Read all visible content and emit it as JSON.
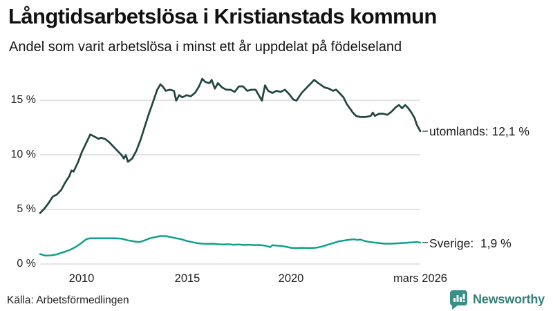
{
  "header": {
    "title": "Långtidsarbetslösa i Kristianstads kommun",
    "subtitle": "Andel som varit arbetslösa i minst ett år uppdelat på födelseland"
  },
  "footer": {
    "source": "Källa: Arbetsförmedlingen",
    "logo_text": "Newsworthy",
    "logo_icon": "bar-chart-speech-bubble-icon"
  },
  "colors": {
    "background": "#ffffff",
    "utomlands_line": "#1f463f",
    "sverige_line": "#0fa08d",
    "gridline": "#e4e4e4",
    "text": "#111111",
    "label_connector": "#4a4a4a",
    "logo_teal": "#3a8e88"
  },
  "chart_data": {
    "type": "line",
    "title": "Långtidsarbetslösa i Kristianstads kommun",
    "subtitle": "Andel som varit arbetslösa i minst ett år uppdelat på födelseland",
    "xlabel": "",
    "ylabel": "",
    "grid": "horizontal",
    "legend_position": "right-of-line-end",
    "xlim": [
      2008.0,
      2026.17
    ],
    "ylim": [
      0,
      17.5
    ],
    "x_axis": {
      "ticks": [
        {
          "x": 2010,
          "label": "2010"
        },
        {
          "x": 2015,
          "label": "2015"
        },
        {
          "x": 2020,
          "label": "2020"
        },
        {
          "x": 2026.17,
          "label": "mars 2026"
        }
      ]
    },
    "y_axis": {
      "ticks": [
        {
          "value": 15,
          "label": "15 %"
        },
        {
          "value": 10,
          "label": "10 %"
        },
        {
          "value": 5,
          "label": "5 %"
        },
        {
          "value": 0,
          "label": "0 %"
        }
      ]
    },
    "series": [
      {
        "name": "utomlands",
        "label": "utomlands: 12,1 %",
        "final_value": "12,1 %",
        "color": "#1f463f",
        "width": 2.7,
        "points": [
          [
            2008.0,
            4.6
          ],
          [
            2008.2,
            5.0
          ],
          [
            2008.4,
            5.5
          ],
          [
            2008.6,
            6.1
          ],
          [
            2008.8,
            6.3
          ],
          [
            2009.0,
            6.7
          ],
          [
            2009.2,
            7.4
          ],
          [
            2009.4,
            8.0
          ],
          [
            2009.5,
            8.5
          ],
          [
            2009.6,
            8.4
          ],
          [
            2009.8,
            9.2
          ],
          [
            2010.0,
            10.2
          ],
          [
            2010.2,
            11.0
          ],
          [
            2010.4,
            11.8
          ],
          [
            2010.6,
            11.6
          ],
          [
            2010.8,
            11.4
          ],
          [
            2010.9,
            11.5
          ],
          [
            2011.1,
            11.4
          ],
          [
            2011.3,
            11.1
          ],
          [
            2011.5,
            10.7
          ],
          [
            2011.7,
            10.3
          ],
          [
            2011.9,
            9.9
          ],
          [
            2012.0,
            9.6
          ],
          [
            2012.1,
            9.9
          ],
          [
            2012.2,
            9.3
          ],
          [
            2012.4,
            9.6
          ],
          [
            2012.6,
            10.3
          ],
          [
            2012.8,
            11.3
          ],
          [
            2013.0,
            12.5
          ],
          [
            2013.2,
            13.7
          ],
          [
            2013.4,
            14.8
          ],
          [
            2013.6,
            15.9
          ],
          [
            2013.75,
            16.4
          ],
          [
            2013.9,
            16.1
          ],
          [
            2014.0,
            15.8
          ],
          [
            2014.2,
            15.9
          ],
          [
            2014.4,
            15.8
          ],
          [
            2014.5,
            14.9
          ],
          [
            2014.65,
            15.4
          ],
          [
            2014.8,
            15.2
          ],
          [
            2015.0,
            15.4
          ],
          [
            2015.2,
            15.3
          ],
          [
            2015.4,
            15.6
          ],
          [
            2015.6,
            16.2
          ],
          [
            2015.75,
            16.9
          ],
          [
            2015.9,
            16.6
          ],
          [
            2016.1,
            16.5
          ],
          [
            2016.2,
            16.8
          ],
          [
            2016.35,
            16.0
          ],
          [
            2016.5,
            16.5
          ],
          [
            2016.7,
            16.1
          ],
          [
            2016.9,
            15.9
          ],
          [
            2017.1,
            15.9
          ],
          [
            2017.3,
            15.7
          ],
          [
            2017.5,
            16.2
          ],
          [
            2017.7,
            16.2
          ],
          [
            2017.9,
            15.8
          ],
          [
            2018.1,
            15.9
          ],
          [
            2018.3,
            15.9
          ],
          [
            2018.45,
            15.4
          ],
          [
            2018.6,
            14.9
          ],
          [
            2018.75,
            16.3
          ],
          [
            2018.9,
            15.8
          ],
          [
            2019.1,
            15.6
          ],
          [
            2019.3,
            15.8
          ],
          [
            2019.5,
            15.7
          ],
          [
            2019.7,
            15.9
          ],
          [
            2019.9,
            15.5
          ],
          [
            2020.1,
            15.0
          ],
          [
            2020.25,
            14.9
          ],
          [
            2020.5,
            15.6
          ],
          [
            2020.7,
            16.0
          ],
          [
            2020.9,
            16.4
          ],
          [
            2021.1,
            16.8
          ],
          [
            2021.3,
            16.5
          ],
          [
            2021.6,
            16.1
          ],
          [
            2021.8,
            16.0
          ],
          [
            2022.0,
            15.8
          ],
          [
            2022.15,
            15.9
          ],
          [
            2022.3,
            15.6
          ],
          [
            2022.5,
            15.2
          ],
          [
            2022.65,
            14.6
          ],
          [
            2022.8,
            14.2
          ],
          [
            2022.95,
            13.8
          ],
          [
            2023.1,
            13.5
          ],
          [
            2023.3,
            13.4
          ],
          [
            2023.55,
            13.4
          ],
          [
            2023.8,
            13.5
          ],
          [
            2023.9,
            13.8
          ],
          [
            2024.0,
            13.5
          ],
          [
            2024.2,
            13.7
          ],
          [
            2024.4,
            13.7
          ],
          [
            2024.6,
            13.6
          ],
          [
            2024.8,
            13.9
          ],
          [
            2025.0,
            14.3
          ],
          [
            2025.15,
            14.5
          ],
          [
            2025.3,
            14.2
          ],
          [
            2025.45,
            14.5
          ],
          [
            2025.6,
            14.2
          ],
          [
            2025.75,
            13.8
          ],
          [
            2025.9,
            13.3
          ],
          [
            2026.0,
            12.7
          ],
          [
            2026.17,
            12.1
          ]
        ]
      },
      {
        "name": "sverige",
        "label": "Sverige:  1,9 %",
        "final_value": "1,9 %",
        "color": "#0fa08d",
        "width": 2.5,
        "points": [
          [
            2008.0,
            0.85
          ],
          [
            2008.25,
            0.7
          ],
          [
            2008.5,
            0.72
          ],
          [
            2008.75,
            0.8
          ],
          [
            2009.0,
            0.95
          ],
          [
            2009.25,
            1.1
          ],
          [
            2009.5,
            1.3
          ],
          [
            2009.75,
            1.55
          ],
          [
            2010.0,
            1.9
          ],
          [
            2010.2,
            2.2
          ],
          [
            2010.4,
            2.3
          ],
          [
            2010.75,
            2.3
          ],
          [
            2011.0,
            2.3
          ],
          [
            2011.3,
            2.3
          ],
          [
            2011.6,
            2.3
          ],
          [
            2011.9,
            2.25
          ],
          [
            2012.2,
            2.1
          ],
          [
            2012.5,
            2.0
          ],
          [
            2012.75,
            1.95
          ],
          [
            2013.0,
            2.1
          ],
          [
            2013.25,
            2.3
          ],
          [
            2013.5,
            2.4
          ],
          [
            2013.75,
            2.5
          ],
          [
            2014.0,
            2.5
          ],
          [
            2014.25,
            2.4
          ],
          [
            2014.5,
            2.3
          ],
          [
            2014.75,
            2.2
          ],
          [
            2015.0,
            2.05
          ],
          [
            2015.25,
            1.95
          ],
          [
            2015.5,
            1.85
          ],
          [
            2015.75,
            1.8
          ],
          [
            2016.0,
            1.78
          ],
          [
            2016.25,
            1.8
          ],
          [
            2016.5,
            1.75
          ],
          [
            2016.75,
            1.72
          ],
          [
            2017.0,
            1.75
          ],
          [
            2017.25,
            1.7
          ],
          [
            2017.5,
            1.72
          ],
          [
            2017.75,
            1.68
          ],
          [
            2018.0,
            1.7
          ],
          [
            2018.25,
            1.66
          ],
          [
            2018.5,
            1.68
          ],
          [
            2018.75,
            1.62
          ],
          [
            2019.0,
            1.48
          ],
          [
            2019.1,
            1.66
          ],
          [
            2019.3,
            1.62
          ],
          [
            2019.5,
            1.6
          ],
          [
            2019.75,
            1.52
          ],
          [
            2020.0,
            1.42
          ],
          [
            2020.25,
            1.4
          ],
          [
            2020.5,
            1.42
          ],
          [
            2020.75,
            1.4
          ],
          [
            2021.0,
            1.4
          ],
          [
            2021.25,
            1.44
          ],
          [
            2021.5,
            1.55
          ],
          [
            2021.75,
            1.7
          ],
          [
            2022.0,
            1.85
          ],
          [
            2022.25,
            2.0
          ],
          [
            2022.5,
            2.08
          ],
          [
            2022.75,
            2.15
          ],
          [
            2023.0,
            2.2
          ],
          [
            2023.15,
            2.14
          ],
          [
            2023.3,
            2.18
          ],
          [
            2023.5,
            2.05
          ],
          [
            2023.75,
            1.95
          ],
          [
            2024.0,
            1.9
          ],
          [
            2024.25,
            1.84
          ],
          [
            2024.5,
            1.8
          ],
          [
            2024.75,
            1.8
          ],
          [
            2025.0,
            1.82
          ],
          [
            2025.25,
            1.85
          ],
          [
            2025.5,
            1.88
          ],
          [
            2025.75,
            1.92
          ],
          [
            2026.0,
            1.95
          ],
          [
            2026.17,
            1.9
          ]
        ]
      }
    ]
  }
}
